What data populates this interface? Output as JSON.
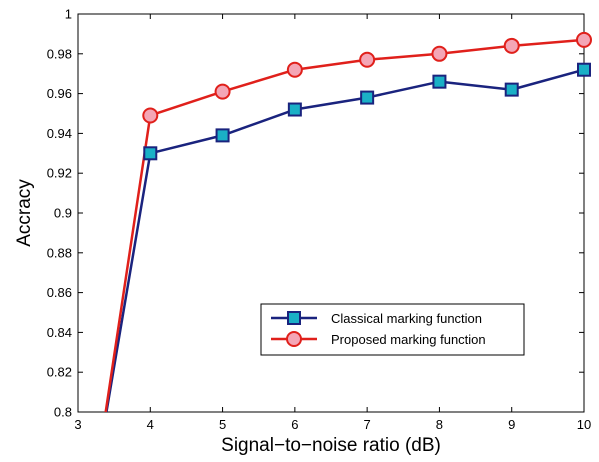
{
  "chart_data": {
    "type": "line",
    "title": "",
    "xlabel": "Signal−to−noise ratio (dB)",
    "ylabel": "Accracy",
    "xlim": [
      3,
      10
    ],
    "ylim": [
      0.8,
      1.0
    ],
    "x_ticks": [
      "3",
      "4",
      "5",
      "6",
      "7",
      "8",
      "9",
      "10"
    ],
    "y_ticks": [
      "0.8",
      "0.82",
      "0.84",
      "0.86",
      "0.88",
      "0.9",
      "0.92",
      "0.94",
      "0.96",
      "0.98",
      "1"
    ],
    "grid": false,
    "legend_position": "lower-right",
    "series": [
      {
        "name": "Classical marking function",
        "color": "#1a237e",
        "marker": "square",
        "marker_color": "#1ab0c6",
        "x": [
          3.3,
          4,
          5,
          6,
          7,
          8,
          9,
          10
        ],
        "y": [
          0.78,
          0.93,
          0.939,
          0.952,
          0.958,
          0.966,
          0.962,
          0.972
        ]
      },
      {
        "name": "Proposed marking function",
        "color": "#e0201b",
        "marker": "circle",
        "marker_color": "#f4a6b6",
        "x": [
          3.3,
          4,
          5,
          6,
          7,
          8,
          9,
          10
        ],
        "y": [
          0.78,
          0.949,
          0.961,
          0.972,
          0.977,
          0.98,
          0.984,
          0.987
        ]
      }
    ]
  }
}
